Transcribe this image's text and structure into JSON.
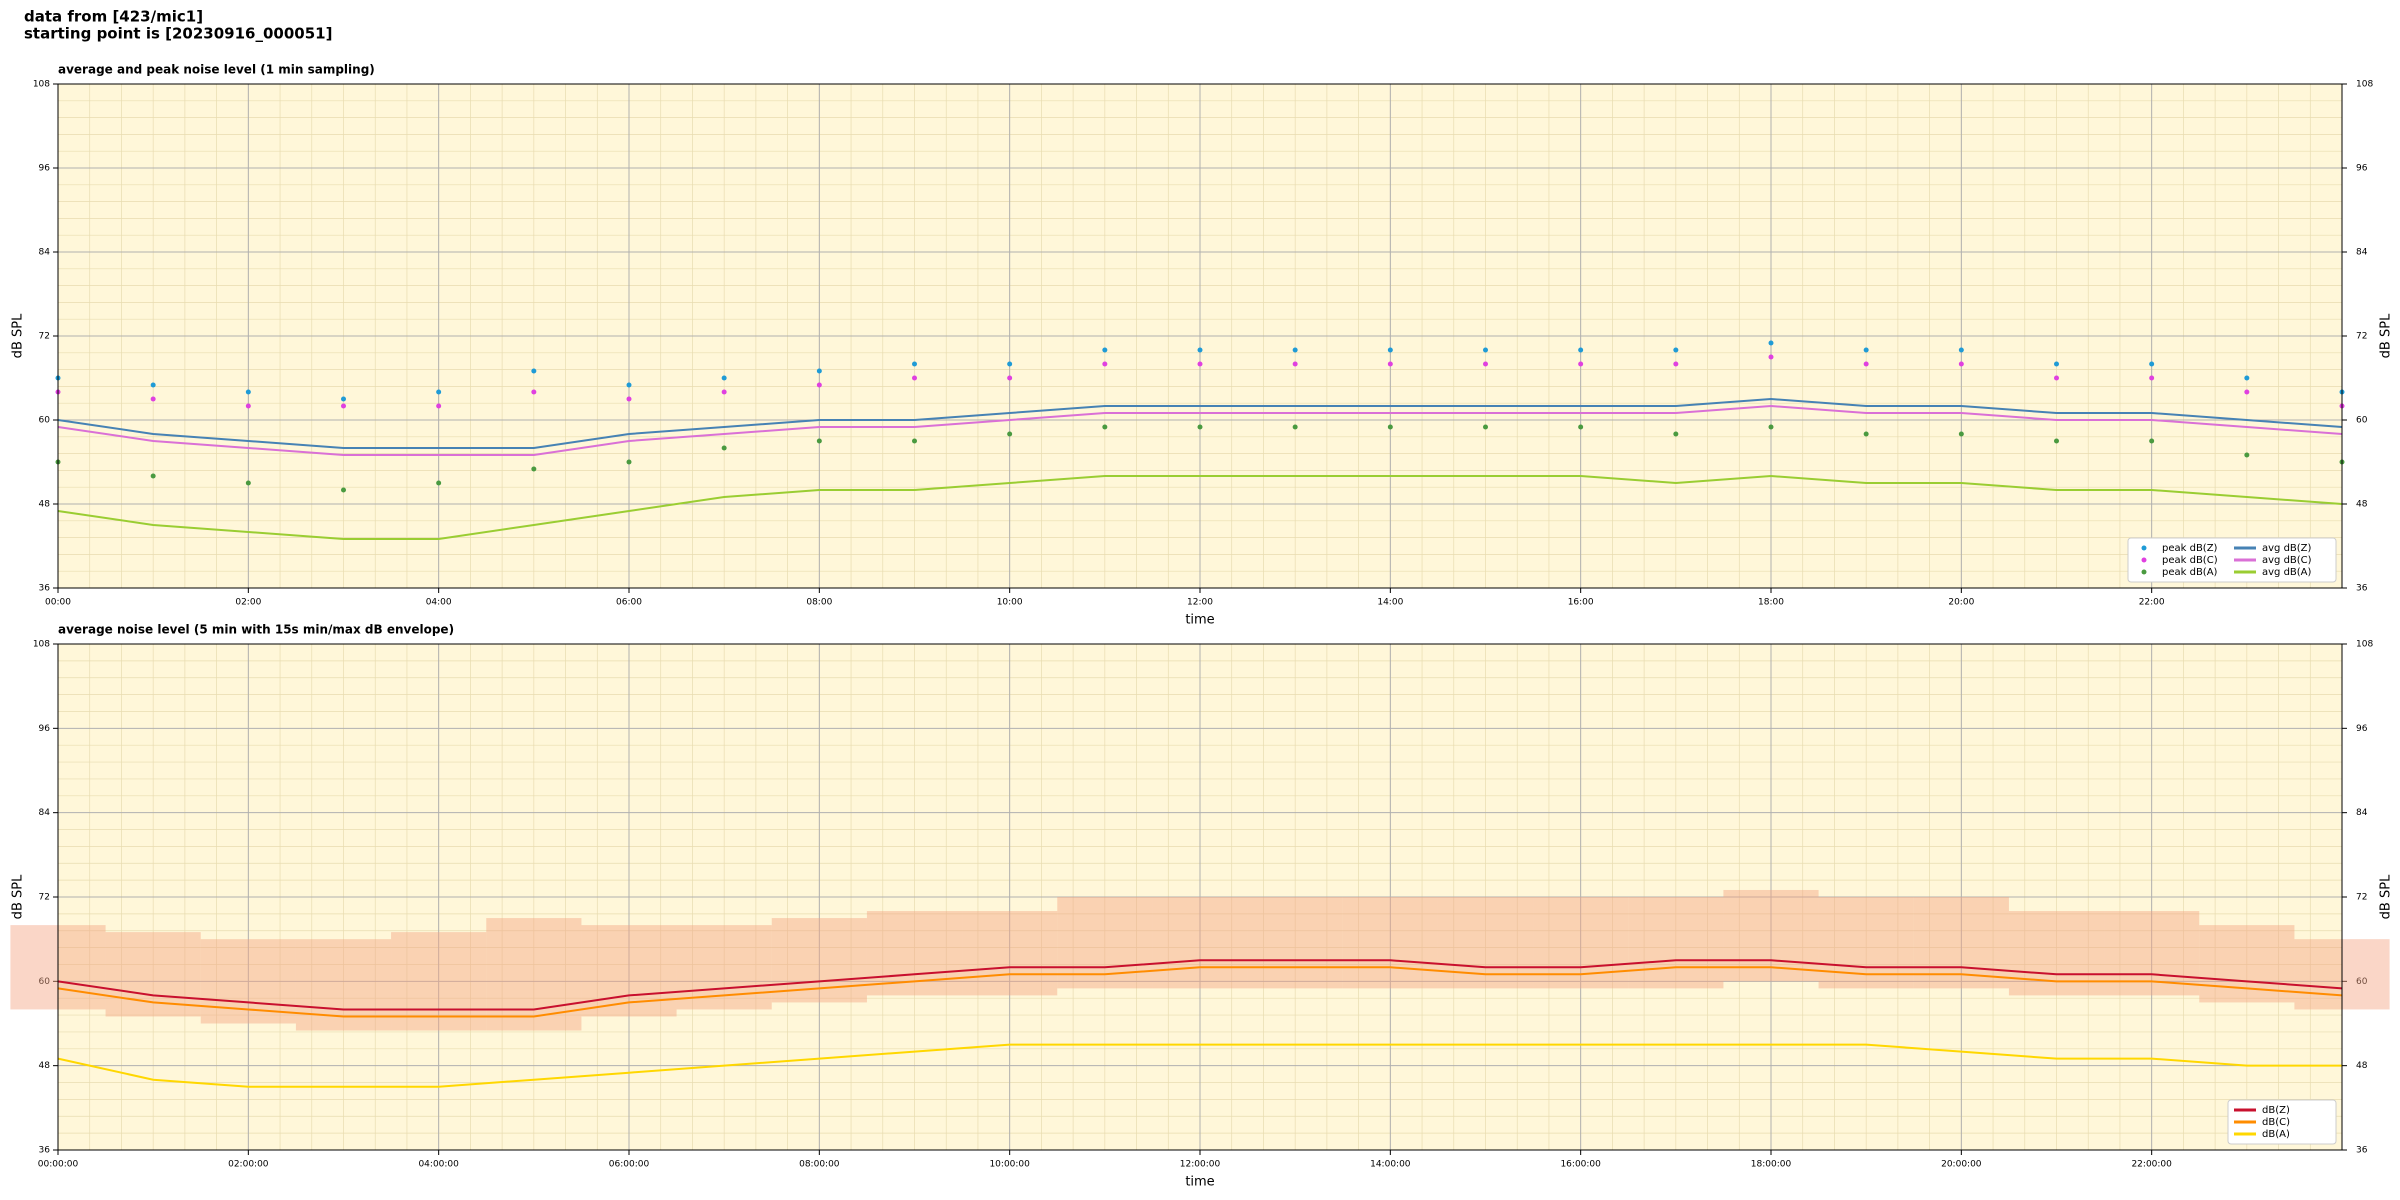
{
  "header": {
    "line1": "data from [423/mic1]",
    "line2": "starting point is [20230916_000051]"
  },
  "chart_data": [
    {
      "type": "line",
      "title": "average and peak noise level (1 min sampling)",
      "xlabel": "time",
      "ylabel": "dB SPL",
      "y2label": "dB SPL",
      "plot_bg": "#fff7d9",
      "grid": true,
      "minor_grid": true,
      "legend": "lower right",
      "legend_ncol": 2,
      "x": [
        0,
        1,
        2,
        3,
        4,
        5,
        6,
        7,
        8,
        9,
        10,
        11,
        12,
        13,
        14,
        15,
        16,
        17,
        18,
        19,
        20,
        21,
        22,
        23,
        24
      ],
      "xlim": [
        0,
        24
      ],
      "xticks": [
        {
          "value": 0,
          "label": "00:00"
        },
        {
          "value": 2,
          "label": "02:00"
        },
        {
          "value": 4,
          "label": "04:00"
        },
        {
          "value": 6,
          "label": "06:00"
        },
        {
          "value": 8,
          "label": "08:00"
        },
        {
          "value": 10,
          "label": "10:00"
        },
        {
          "value": 12,
          "label": "12:00"
        },
        {
          "value": 14,
          "label": "14:00"
        },
        {
          "value": 16,
          "label": "16:00"
        },
        {
          "value": 18,
          "label": "18:00"
        },
        {
          "value": 20,
          "label": "20:00"
        },
        {
          "value": 22,
          "label": "22:00"
        }
      ],
      "ylim": [
        36,
        108
      ],
      "yticks": [
        36,
        48,
        60,
        72,
        84,
        96,
        108
      ],
      "y2lim": [
        36,
        108
      ],
      "y2ticks": [
        36,
        48,
        60,
        72,
        84,
        96,
        108
      ],
      "series": [
        {
          "name": "peak dB(Z)",
          "style": "dots",
          "color": "#1f9bd6",
          "values": [
            66,
            65,
            64,
            63,
            64,
            67,
            65,
            66,
            67,
            68,
            68,
            70,
            70,
            70,
            70,
            70,
            70,
            70,
            71,
            70,
            70,
            68,
            68,
            66,
            64
          ]
        },
        {
          "name": "peak dB(C)",
          "style": "dots",
          "color": "#e040e0",
          "values": [
            64,
            63,
            62,
            62,
            62,
            64,
            63,
            64,
            65,
            66,
            66,
            68,
            68,
            68,
            68,
            68,
            68,
            68,
            69,
            68,
            68,
            66,
            66,
            64,
            62
          ]
        },
        {
          "name": "peak dB(A)",
          "style": "dots",
          "color": "#4a9a40",
          "values": [
            54,
            52,
            51,
            50,
            51,
            53,
            54,
            56,
            57,
            57,
            58,
            59,
            59,
            59,
            59,
            59,
            59,
            58,
            59,
            58,
            58,
            57,
            57,
            55,
            54
          ]
        },
        {
          "name": "avg dB(Z)",
          "style": "line",
          "color": "#4682b4",
          "values": [
            60,
            58,
            57,
            56,
            56,
            56,
            58,
            59,
            60,
            60,
            61,
            62,
            62,
            62,
            62,
            62,
            62,
            62,
            63,
            62,
            62,
            61,
            61,
            60,
            59
          ]
        },
        {
          "name": "avg dB(C)",
          "style": "line",
          "color": "#da70d6",
          "values": [
            59,
            57,
            56,
            55,
            55,
            55,
            57,
            58,
            59,
            59,
            60,
            61,
            61,
            61,
            61,
            61,
            61,
            61,
            62,
            61,
            61,
            60,
            60,
            59,
            58
          ]
        },
        {
          "name": "avg dB(A)",
          "style": "line",
          "color": "#9acd32",
          "values": [
            47,
            45,
            44,
            43,
            43,
            45,
            47,
            49,
            50,
            50,
            51,
            52,
            52,
            52,
            52,
            52,
            52,
            51,
            52,
            51,
            51,
            50,
            50,
            49,
            48
          ]
        }
      ]
    },
    {
      "type": "line",
      "title": "average noise level (5 min with 15s min/max dB envelope)",
      "xlabel": "time",
      "ylabel": "dB SPL",
      "y2label": "dB SPL",
      "plot_bg": "#fff7d9",
      "grid": true,
      "minor_grid": true,
      "legend": "lower right",
      "legend_ncol": 1,
      "x": [
        0,
        1,
        2,
        3,
        4,
        5,
        6,
        7,
        8,
        9,
        10,
        11,
        12,
        13,
        14,
        15,
        16,
        17,
        18,
        19,
        20,
        21,
        22,
        23,
        24
      ],
      "xlim": [
        0,
        24
      ],
      "xticks": [
        {
          "value": 0,
          "label": "00:00:00"
        },
        {
          "value": 2,
          "label": "02:00:00"
        },
        {
          "value": 4,
          "label": "04:00:00"
        },
        {
          "value": 6,
          "label": "06:00:00"
        },
        {
          "value": 8,
          "label": "08:00:00"
        },
        {
          "value": 10,
          "label": "10:00:00"
        },
        {
          "value": 12,
          "label": "12:00:00"
        },
        {
          "value": 14,
          "label": "14:00:00"
        },
        {
          "value": 16,
          "label": "16:00:00"
        },
        {
          "value": 18,
          "label": "18:00:00"
        },
        {
          "value": 20,
          "label": "20:00:00"
        },
        {
          "value": 22,
          "label": "22:00:00"
        }
      ],
      "ylim": [
        36,
        108
      ],
      "yticks": [
        36,
        48,
        60,
        72,
        84,
        96,
        108
      ],
      "y2lim": [
        36,
        108
      ],
      "y2ticks": [
        36,
        48,
        60,
        72,
        84,
        96,
        108
      ],
      "envelope": {
        "color": "#f4a582",
        "low": [
          56,
          55,
          54,
          53,
          53,
          53,
          55,
          56,
          57,
          58,
          58,
          59,
          59,
          59,
          59,
          59,
          59,
          59,
          60,
          59,
          59,
          58,
          58,
          57,
          56
        ],
        "high": [
          68,
          67,
          66,
          66,
          67,
          69,
          68,
          68,
          69,
          70,
          70,
          72,
          72,
          72,
          72,
          72,
          72,
          72,
          73,
          72,
          72,
          70,
          70,
          68,
          66
        ]
      },
      "series": [
        {
          "name": "dB(Z)",
          "style": "line",
          "color": "#c8102e",
          "values": [
            60,
            58,
            57,
            56,
            56,
            56,
            58,
            59,
            60,
            61,
            62,
            62,
            63,
            63,
            63,
            62,
            62,
            63,
            63,
            62,
            62,
            61,
            61,
            60,
            59
          ]
        },
        {
          "name": "dB(C)",
          "style": "line",
          "color": "#ff8c00",
          "values": [
            59,
            57,
            56,
            55,
            55,
            55,
            57,
            58,
            59,
            60,
            61,
            61,
            62,
            62,
            62,
            61,
            61,
            62,
            62,
            61,
            61,
            60,
            60,
            59,
            58
          ]
        },
        {
          "name": "dB(A)",
          "style": "line",
          "color": "#ffd700",
          "values": [
            49,
            46,
            45,
            45,
            45,
            46,
            47,
            48,
            49,
            50,
            51,
            51,
            51,
            51,
            51,
            51,
            51,
            51,
            51,
            51,
            50,
            49,
            49,
            48,
            48
          ]
        }
      ]
    }
  ]
}
